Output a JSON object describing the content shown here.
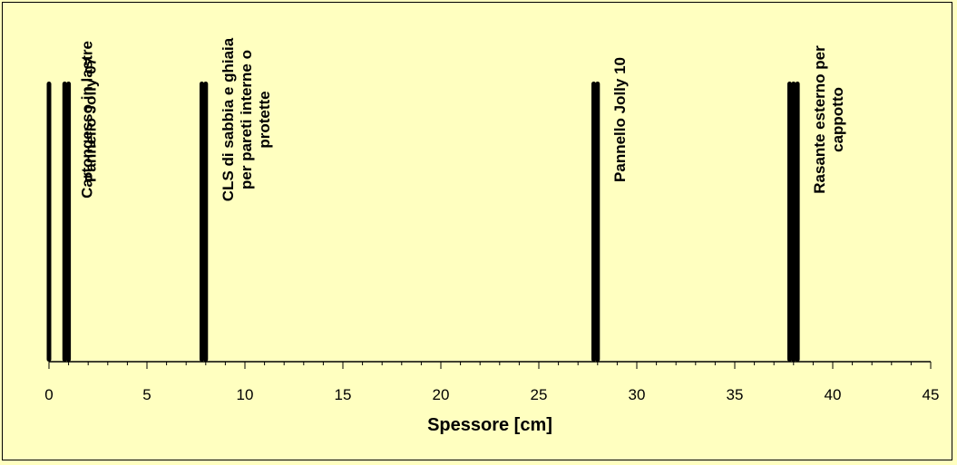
{
  "chart_data": {
    "type": "bar",
    "title": "",
    "xlabel": "Spessore [cm]",
    "ylabel": "",
    "xlim": [
      0,
      45
    ],
    "xticks": [
      0,
      5,
      10,
      15,
      20,
      25,
      30,
      35,
      40,
      45
    ],
    "grid": false,
    "background_color": "#ffffc0",
    "bar_color": "#000000",
    "boundaries": [
      0,
      0.8,
      1.0,
      7.8,
      8.0,
      27.8,
      28.0,
      37.8,
      38.0,
      38.2
    ],
    "layers": [
      {
        "label": "Cartongesso in lastre",
        "x": 0.8
      },
      {
        "label": "Pannello Jolly 07",
        "x": 1.0
      },
      {
        "label": "CLS di sabbia e ghiaia per pareti interne o protette",
        "x": 8.0
      },
      {
        "label": "Pannello Jolly 10",
        "x": 28.0
      },
      {
        "label": "Rasante esterno per cappotto",
        "x": 38.2
      }
    ]
  }
}
